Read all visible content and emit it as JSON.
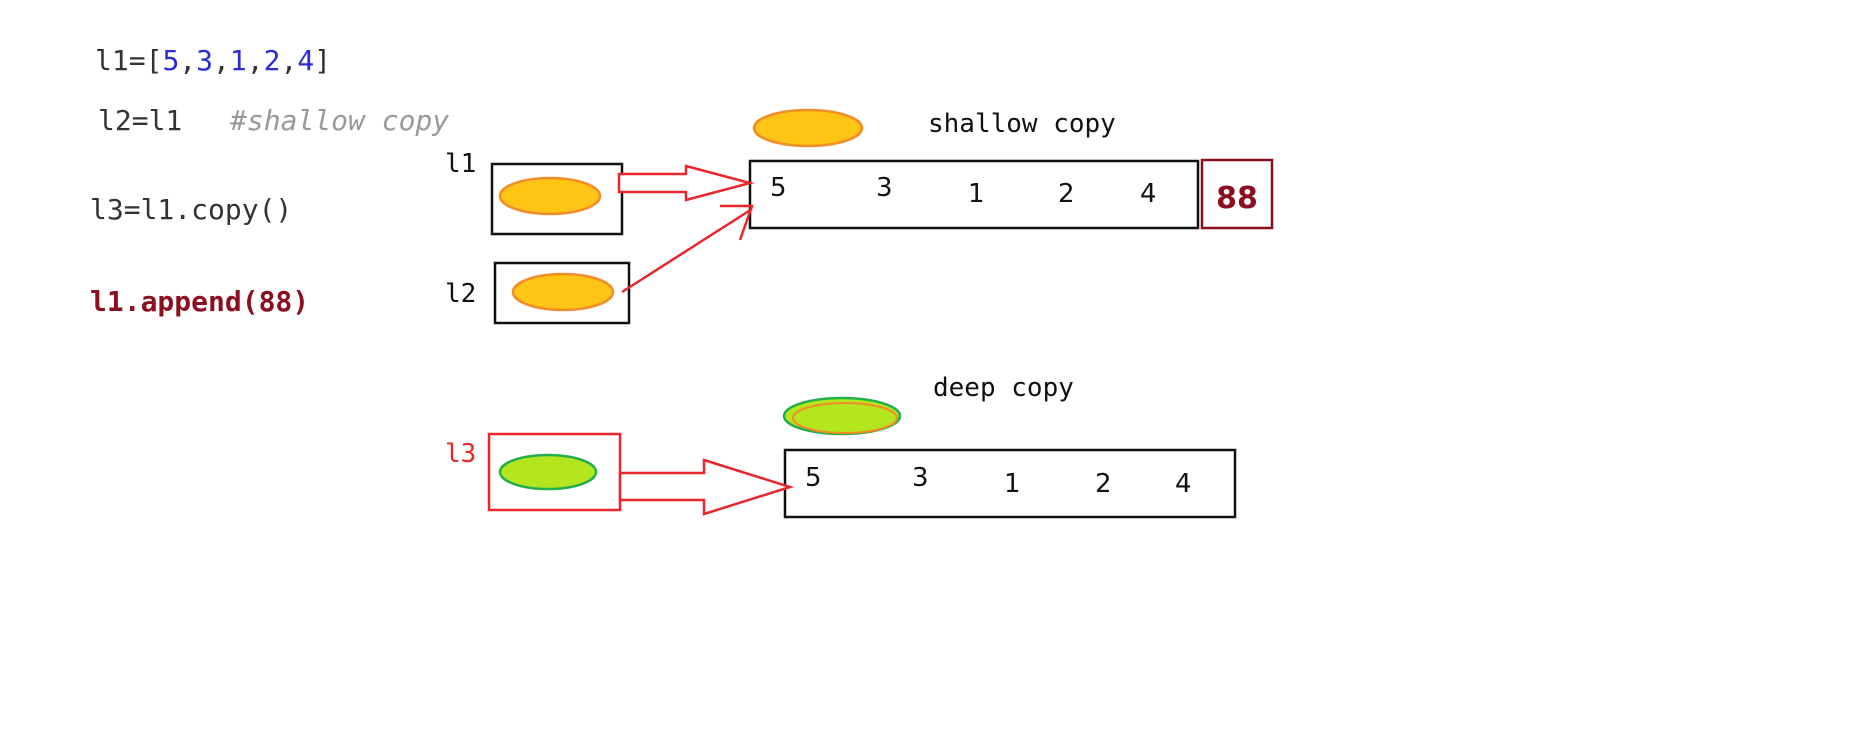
{
  "code": {
    "line1": {
      "var": "l1=[",
      "items": [
        "5",
        "3",
        "1",
        "2",
        "4"
      ],
      "sep": ",",
      "close": "]"
    },
    "line2": {
      "text": "l2=l1",
      "comment": "#shallow copy"
    },
    "line3": {
      "text": "l3=l1.copy()"
    },
    "line4": {
      "text": "l1.append(88)"
    }
  },
  "shallow": {
    "title": "shallow copy",
    "var_l1": "l1",
    "var_l2": "l2",
    "values": [
      "5",
      "3",
      "1",
      "2",
      "4"
    ],
    "appended": "88"
  },
  "deep": {
    "title": "deep copy",
    "var_l3": "l3",
    "values": [
      "5",
      "3",
      "1",
      "2",
      "4"
    ]
  },
  "colors": {
    "text": "#333333",
    "number_blue": "#2b2bd8",
    "comment_gray": "#999999",
    "append_red": "#8b0f1f",
    "arrow_red": "#e8262b",
    "orange_fill": "#ffc514",
    "orange_stroke": "#f28c28",
    "green_fill": "#b4e61e",
    "green_stroke": "#22b04c",
    "l3_label": "#e8262b"
  }
}
